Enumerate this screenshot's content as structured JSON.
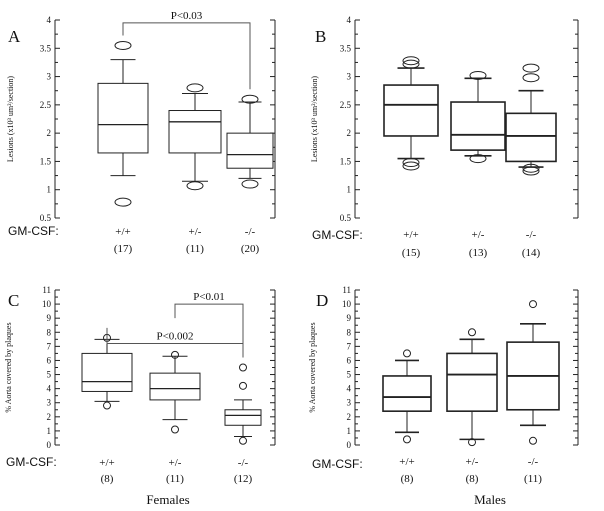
{
  "gm_label": "GM-CSF:",
  "chart_data": [
    {
      "panel": "A",
      "type": "box",
      "ylabel": "Lesions (x10³ um²/section)",
      "ylim": [
        0.5,
        4
      ],
      "yticks": [
        0.5,
        1,
        1.5,
        2,
        2.5,
        3,
        3.5,
        4
      ],
      "ytick_labels": [
        "0.5",
        "1",
        "1.5",
        "2",
        "2.5",
        "3",
        "3.5",
        "4"
      ],
      "box_style": "thin",
      "outlier_marker": "ellipse",
      "categories": [
        "+/+",
        "+/-",
        "-/-"
      ],
      "counts": [
        "(17)",
        "(11)",
        "(20)"
      ],
      "boxes": [
        {
          "whisker_low": 1.25,
          "q1": 1.65,
          "median": 2.15,
          "q3": 2.88,
          "whisker_high": 3.3,
          "outliers": [
            3.55,
            0.78
          ]
        },
        {
          "whisker_low": 1.15,
          "q1": 1.65,
          "median": 2.2,
          "q3": 2.4,
          "whisker_high": 2.7,
          "outliers": [
            2.8,
            1.07
          ]
        },
        {
          "whisker_low": 1.2,
          "q1": 1.38,
          "median": 1.62,
          "q3": 2.0,
          "whisker_high": 2.55,
          "outliers": [
            2.6,
            1.1
          ]
        }
      ],
      "significance": [
        {
          "label": "P<0.03",
          "from": 0,
          "to": 2,
          "level": 3.95
        }
      ]
    },
    {
      "panel": "B",
      "type": "box",
      "ylabel": "Lesions (x10³ um²/section)",
      "ylim": [
        0.5,
        4
      ],
      "yticks": [
        0.5,
        1,
        1.5,
        2,
        2.5,
        3,
        3.5,
        4
      ],
      "ytick_labels": [
        "0.5",
        "1",
        "1.5",
        "2",
        "2.5",
        "3",
        "3.5",
        "4"
      ],
      "box_style": "thick",
      "outlier_marker": "ellipse",
      "categories": [
        "+/+",
        "+/-",
        "-/-"
      ],
      "counts": [
        "(15)",
        "(13)",
        "(14)"
      ],
      "boxes": [
        {
          "whisker_low": 1.55,
          "q1": 1.95,
          "median": 2.5,
          "q3": 2.85,
          "whisker_high": 3.15,
          "outliers": [
            3.28,
            3.22,
            1.48,
            1.42
          ]
        },
        {
          "whisker_low": 1.6,
          "q1": 1.7,
          "median": 1.97,
          "q3": 2.55,
          "whisker_high": 2.97,
          "outliers": [
            3.02,
            1.55
          ]
        },
        {
          "whisker_low": 1.4,
          "q1": 1.5,
          "median": 1.95,
          "q3": 2.35,
          "whisker_high": 2.75,
          "outliers": [
            3.15,
            2.98,
            1.38,
            1.33
          ]
        }
      ],
      "significance": []
    },
    {
      "panel": "C",
      "type": "box",
      "ylabel": "% Aorta covered by plaques",
      "ylim": [
        0,
        11
      ],
      "yticks": [
        0,
        1,
        2,
        3,
        4,
        5,
        6,
        7,
        8,
        9,
        10,
        11
      ],
      "ytick_labels": [
        "0",
        "1",
        "2",
        "3",
        "4",
        "5",
        "6",
        "7",
        "8",
        "9",
        "10",
        "11"
      ],
      "box_style": "thin",
      "outlier_marker": "circle",
      "categories": [
        "+/+",
        "+/-",
        "-/-"
      ],
      "counts": [
        "(8)",
        "(11)",
        "(12)"
      ],
      "boxes": [
        {
          "whisker_low": 3.1,
          "q1": 3.8,
          "median": 4.5,
          "q3": 6.5,
          "whisker_high": 7.5,
          "outliers": [
            7.6,
            2.8
          ]
        },
        {
          "whisker_low": 1.8,
          "q1": 3.2,
          "median": 4.0,
          "q3": 5.1,
          "whisker_high": 6.3,
          "outliers": [
            6.4,
            1.1
          ]
        },
        {
          "whisker_low": 0.6,
          "q1": 1.4,
          "median": 2.1,
          "q3": 2.5,
          "whisker_high": 3.2,
          "outliers": [
            4.2,
            5.5,
            0.3
          ]
        }
      ],
      "significance": [
        {
          "label": "P<0.002",
          "from": 0,
          "to": 2,
          "level": 7.2
        },
        {
          "label": "P<0.01",
          "from": 1,
          "to": 2,
          "level": 10.0
        }
      ],
      "footer": "Females"
    },
    {
      "panel": "D",
      "type": "box",
      "ylabel": "% Aorta covered by plaques",
      "ylim": [
        0,
        11
      ],
      "yticks": [
        0,
        1,
        2,
        3,
        4,
        5,
        6,
        7,
        8,
        9,
        10,
        11
      ],
      "ytick_labels": [
        "0",
        "1",
        "2",
        "3",
        "4",
        "5",
        "6",
        "7",
        "8",
        "9",
        "10",
        "11"
      ],
      "box_style": "thick",
      "outlier_marker": "circle",
      "categories": [
        "+/+",
        "+/-",
        "-/-"
      ],
      "counts": [
        "(8)",
        "(8)",
        "(11)"
      ],
      "boxes": [
        {
          "whisker_low": 0.9,
          "q1": 2.4,
          "median": 3.4,
          "q3": 4.9,
          "whisker_high": 6.0,
          "outliers": [
            6.5,
            0.4
          ]
        },
        {
          "whisker_low": 0.4,
          "q1": 2.4,
          "median": 5.0,
          "q3": 6.5,
          "whisker_high": 7.5,
          "outliers": [
            8.0,
            0.2
          ]
        },
        {
          "whisker_low": 1.4,
          "q1": 2.5,
          "median": 4.9,
          "q3": 7.3,
          "whisker_high": 8.6,
          "outliers": [
            10.0,
            0.3
          ]
        }
      ],
      "significance": [],
      "footer": "Males"
    }
  ]
}
